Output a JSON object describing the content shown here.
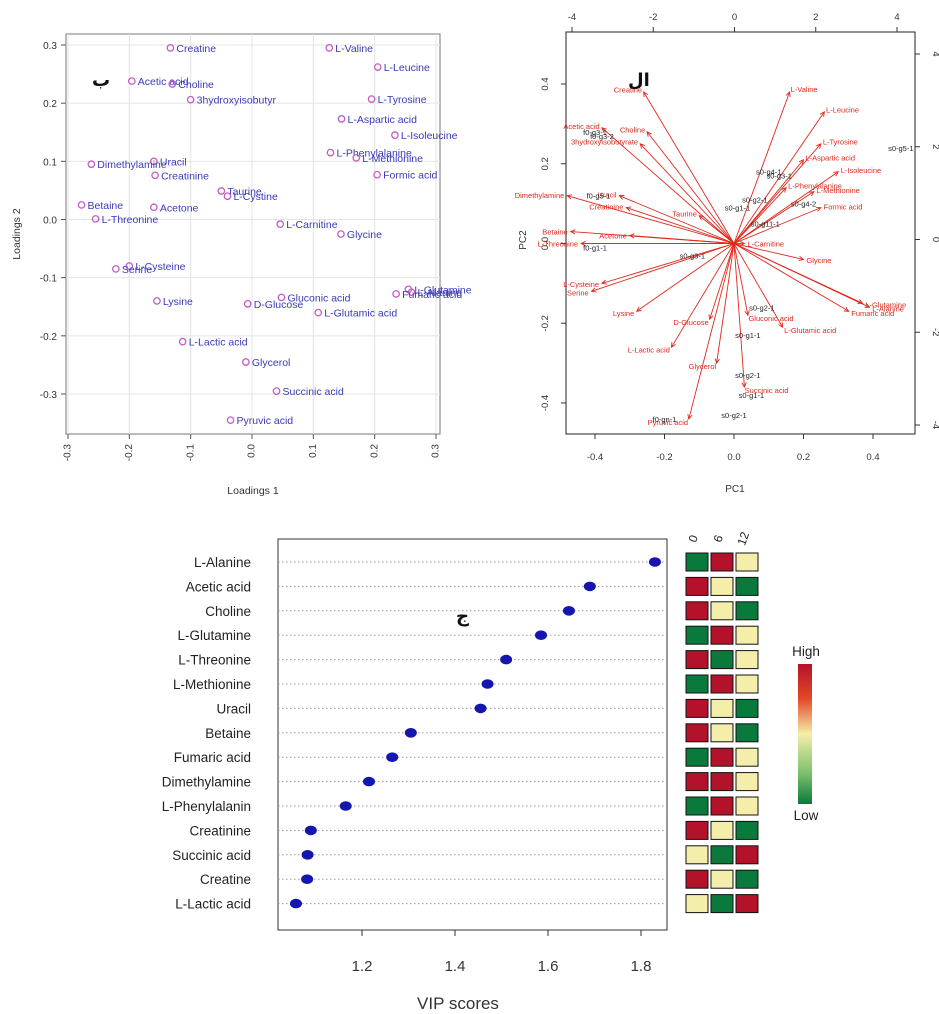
{
  "colors": {
    "loading_point": "#c45cc4",
    "loading_text": "#3a3ab8",
    "biplot_red": "#e0281c",
    "biplot_sample": "#222222",
    "vip_point": "#1515b0",
    "heat_low": "#0a7a3c",
    "heat_mid": "#f5eeaa",
    "heat_high": "#b3122a"
  },
  "chart_data": [
    {
      "type": "scatter",
      "panel_label": "ب",
      "xlabel": "Loadings 1",
      "ylabel": "Loadings 2",
      "xlim": [
        -0.3,
        0.3
      ],
      "ylim": [
        -0.35,
        0.33
      ],
      "xticks": [
        "-0.3",
        "-0.2",
        "-0.1",
        "0.0",
        "0.1",
        "0.2",
        "0.3"
      ],
      "yticks": [
        "0.3",
        "0.2",
        "0.1",
        "0.0",
        "-0.1",
        "-0.2",
        "-0.3"
      ],
      "grid": true,
      "points": [
        {
          "label": "Creatine",
          "x": -0.133,
          "y": 0.295
        },
        {
          "label": "L-Valine",
          "x": 0.126,
          "y": 0.295
        },
        {
          "label": "Acetic acid",
          "x": -0.196,
          "y": 0.238
        },
        {
          "label": "Choline",
          "x": -0.13,
          "y": 0.233
        },
        {
          "label": "L-Leucine",
          "x": 0.205,
          "y": 0.262
        },
        {
          "label": "3hydroxyisobutyr",
          "x": -0.1,
          "y": 0.206
        },
        {
          "label": "L-Tyrosine",
          "x": 0.195,
          "y": 0.207
        },
        {
          "label": "L-Aspartic acid",
          "x": 0.146,
          "y": 0.173
        },
        {
          "label": "L-Isoleucine",
          "x": 0.233,
          "y": 0.145
        },
        {
          "label": "Uracil",
          "x": -0.16,
          "y": 0.1
        },
        {
          "label": "L-Phenylalanine",
          "x": 0.128,
          "y": 0.115
        },
        {
          "label": "L-Methionine",
          "x": 0.17,
          "y": 0.106
        },
        {
          "label": "Dimethylamine",
          "x": -0.262,
          "y": 0.095
        },
        {
          "label": "Creatinine",
          "x": -0.158,
          "y": 0.076
        },
        {
          "label": "Formic acid",
          "x": 0.204,
          "y": 0.077
        },
        {
          "label": "Taurine",
          "x": -0.05,
          "y": 0.049
        },
        {
          "label": "L-Cystine",
          "x": -0.04,
          "y": 0.04
        },
        {
          "label": "Betaine",
          "x": -0.278,
          "y": 0.025
        },
        {
          "label": "Acetone",
          "x": -0.16,
          "y": 0.021
        },
        {
          "label": "L-Threonine",
          "x": -0.255,
          "y": 0.001
        },
        {
          "label": "L-Carnitine",
          "x": 0.046,
          "y": -0.008
        },
        {
          "label": "Glycine",
          "x": 0.145,
          "y": -0.025
        },
        {
          "label": "L-Cysteine",
          "x": -0.2,
          "y": -0.08
        },
        {
          "label": "Serine",
          "x": -0.222,
          "y": -0.085
        },
        {
          "label": "L-Glutamine",
          "x": 0.255,
          "y": -0.12
        },
        {
          "label": "L-Alanine",
          "x": 0.26,
          "y": -0.125
        },
        {
          "label": "Fumaric acid",
          "x": 0.235,
          "y": -0.128
        },
        {
          "label": "Gluconic acid",
          "x": 0.048,
          "y": -0.134
        },
        {
          "label": "Lysine",
          "x": -0.155,
          "y": -0.14
        },
        {
          "label": "D-Glucose",
          "x": -0.007,
          "y": -0.145
        },
        {
          "label": "L-Glutamic acid",
          "x": 0.108,
          "y": -0.16
        },
        {
          "label": "L-Lactic acid",
          "x": -0.113,
          "y": -0.21
        },
        {
          "label": "Glycerol",
          "x": -0.01,
          "y": -0.245
        },
        {
          "label": "Succinic acid",
          "x": 0.04,
          "y": -0.295
        },
        {
          "label": "Pyruvic acid",
          "x": -0.035,
          "y": -0.345
        }
      ]
    },
    {
      "type": "scatter",
      "panel_label": "ال",
      "xlabel": "PC1",
      "ylabel": "PC2",
      "xlim": [
        -0.48,
        0.48
      ],
      "ylim": [
        -0.48,
        0.48
      ],
      "xticks": [
        "-0.4",
        "-0.2",
        "0.0",
        "0.2",
        "0.4"
      ],
      "yticks": [
        "0.4",
        "0.2",
        "0.0",
        "-0.2",
        "-0.4"
      ],
      "top_ticks": [
        "-4",
        "-2",
        "0",
        "2",
        "4"
      ],
      "right_ticks": [
        "4",
        "2",
        "0",
        "-2",
        "-4"
      ],
      "grid": false,
      "arrows": [
        {
          "label": "Creatine",
          "x": -0.26,
          "y": 0.38
        },
        {
          "label": "L-Valine",
          "x": 0.16,
          "y": 0.38
        },
        {
          "label": "L-Leucine",
          "x": 0.26,
          "y": 0.33
        },
        {
          "label": "Acetic acid",
          "x": -0.38,
          "y": 0.29
        },
        {
          "label": "Choline",
          "x": -0.25,
          "y": 0.28
        },
        {
          "label": "3hydroxyisobutyrate",
          "x": -0.27,
          "y": 0.25
        },
        {
          "label": "L-Tyrosine",
          "x": 0.25,
          "y": 0.25
        },
        {
          "label": "L-Aspartic acid",
          "x": 0.2,
          "y": 0.21
        },
        {
          "label": "L-Isoleucine",
          "x": 0.3,
          "y": 0.18
        },
        {
          "label": "Dimethylamine",
          "x": -0.48,
          "y": 0.12
        },
        {
          "label": "Uracil",
          "x": -0.33,
          "y": 0.12
        },
        {
          "label": "Creatinine",
          "x": -0.31,
          "y": 0.09
        },
        {
          "label": "L-Phenylalanine",
          "x": 0.15,
          "y": 0.14
        },
        {
          "label": "L-Methionine",
          "x": 0.23,
          "y": 0.13
        },
        {
          "label": "Formic acid",
          "x": 0.25,
          "y": 0.09
        },
        {
          "label": "Taurine",
          "x": -0.1,
          "y": 0.07
        },
        {
          "label": "Betaine",
          "x": -0.47,
          "y": 0.03
        },
        {
          "label": "Acetone",
          "x": -0.3,
          "y": 0.02
        },
        {
          "label": "L-Threonine",
          "x": -0.44,
          "y": 0.0
        },
        {
          "label": "L-Carnitine",
          "x": 0.03,
          "y": 0.0
        },
        {
          "label": "Glycine",
          "x": 0.2,
          "y": -0.04
        },
        {
          "label": "L-Cysteine",
          "x": -0.38,
          "y": -0.1
        },
        {
          "label": "Serine",
          "x": -0.41,
          "y": -0.12
        },
        {
          "label": "L-Glutamine",
          "x": 0.37,
          "y": -0.15
        },
        {
          "label": "L-Alanine",
          "x": 0.39,
          "y": -0.16
        },
        {
          "label": "Fumaric acid",
          "x": 0.33,
          "y": -0.17
        },
        {
          "label": "Lysine",
          "x": -0.28,
          "y": -0.17
        },
        {
          "label": "D-Glucose",
          "x": -0.07,
          "y": -0.19
        },
        {
          "label": "Gluconic acid",
          "x": 0.04,
          "y": -0.18
        },
        {
          "label": "L-Glutamic acid",
          "x": 0.14,
          "y": -0.21
        },
        {
          "label": "L-Lactic acid",
          "x": -0.18,
          "y": -0.26
        },
        {
          "label": "Glycerol",
          "x": -0.05,
          "y": -0.3
        },
        {
          "label": "Succinic acid",
          "x": 0.03,
          "y": -0.36
        },
        {
          "label": "Pyruvic acid",
          "x": -0.13,
          "y": -0.44
        }
      ],
      "samples": [
        {
          "label": "f0-g3-1",
          "x": -0.4,
          "y": 0.28
        },
        {
          "label": "f0-g3-2",
          "x": -0.38,
          "y": 0.27
        },
        {
          "label": "s0-g5-1",
          "x": 0.48,
          "y": 0.24
        },
        {
          "label": "s0-g4-1",
          "x": 0.1,
          "y": 0.18
        },
        {
          "label": "s0-g3-1",
          "x": 0.13,
          "y": 0.17
        },
        {
          "label": "f0-g5-1",
          "x": -0.39,
          "y": 0.12
        },
        {
          "label": "s0-g2-1",
          "x": 0.06,
          "y": 0.11
        },
        {
          "label": "s0-g1-1",
          "x": 0.01,
          "y": 0.09
        },
        {
          "label": "s0-g4-2",
          "x": 0.2,
          "y": 0.1
        },
        {
          "label": "s0-g11-1",
          "x": 0.09,
          "y": 0.05
        },
        {
          "label": "f0-g1-1",
          "x": -0.4,
          "y": -0.01
        },
        {
          "label": "s0-g3-1",
          "x": -0.12,
          "y": -0.03
        },
        {
          "label": "s0-g2-1",
          "x": 0.08,
          "y": -0.16
        },
        {
          "label": "s0-g1-1",
          "x": 0.04,
          "y": -0.23
        },
        {
          "label": "s0-g2-1",
          "x": 0.04,
          "y": -0.33
        },
        {
          "label": "s0-g1-1",
          "x": 0.05,
          "y": -0.38
        },
        {
          "label": "s0-g2-1",
          "x": 0.0,
          "y": -0.43
        },
        {
          "label": "f0-gn-1",
          "x": -0.2,
          "y": -0.44
        }
      ]
    },
    {
      "type": "scatter",
      "panel_label": "ج",
      "xlabel": "VIP scores",
      "xlim": [
        1.03,
        1.85
      ],
      "xticks": [
        1.2,
        1.4,
        1.6,
        1.8
      ],
      "heatmap_columns": [
        "0",
        "6",
        "12"
      ],
      "legend_high": "High",
      "legend_low": "Low",
      "points": [
        {
          "label": "L-Alanine",
          "vip": 1.83,
          "levels": [
            "low",
            "high",
            "mid"
          ]
        },
        {
          "label": "Acetic acid",
          "vip": 1.69,
          "levels": [
            "high",
            "mid",
            "low"
          ]
        },
        {
          "label": "Choline",
          "vip": 1.645,
          "levels": [
            "high",
            "mid",
            "low"
          ]
        },
        {
          "label": "L-Glutamine",
          "vip": 1.585,
          "levels": [
            "low",
            "high",
            "mid"
          ]
        },
        {
          "label": "L-Threonine",
          "vip": 1.51,
          "levels": [
            "high",
            "low",
            "mid"
          ]
        },
        {
          "label": "L-Methionine",
          "vip": 1.47,
          "levels": [
            "low",
            "high",
            "mid"
          ]
        },
        {
          "label": "Uracil",
          "vip": 1.455,
          "levels": [
            "high",
            "mid",
            "low"
          ]
        },
        {
          "label": "Betaine",
          "vip": 1.305,
          "levels": [
            "high",
            "mid",
            "low"
          ]
        },
        {
          "label": "Fumaric acid",
          "vip": 1.265,
          "levels": [
            "low",
            "high",
            "mid"
          ]
        },
        {
          "label": "Dimethylamine",
          "vip": 1.215,
          "levels": [
            "high",
            "high",
            "mid"
          ]
        },
        {
          "label": "L-Phenylalanin",
          "vip": 1.165,
          "levels": [
            "low",
            "high",
            "mid"
          ]
        },
        {
          "label": "Creatinine",
          "vip": 1.09,
          "levels": [
            "high",
            "mid",
            "low"
          ]
        },
        {
          "label": "Succinic acid",
          "vip": 1.083,
          "levels": [
            "mid",
            "low",
            "high"
          ]
        },
        {
          "label": "Creatine",
          "vip": 1.082,
          "levels": [
            "high",
            "mid",
            "low"
          ]
        },
        {
          "label": "L-Lactic acid",
          "vip": 1.058,
          "levels": [
            "mid",
            "low",
            "high"
          ]
        }
      ]
    }
  ]
}
